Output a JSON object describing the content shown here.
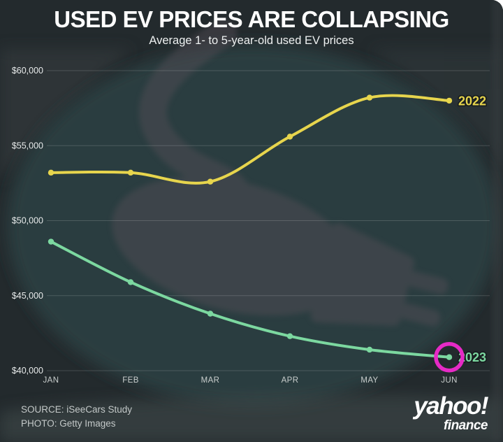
{
  "header": {
    "title": "USED EV PRICES ARE COLLAPSING",
    "subtitle": "Average 1- to 5-year-old used EV prices"
  },
  "chart_data": {
    "type": "line",
    "categories": [
      "JAN",
      "FEB",
      "MAR",
      "APR",
      "MAY",
      "JUN"
    ],
    "series": [
      {
        "name": "2022",
        "color": "#e7d54d",
        "values": [
          53200,
          53200,
          52600,
          55600,
          58200,
          58000
        ]
      },
      {
        "name": "2023",
        "color": "#7cd8a0",
        "values": [
          48600,
          45900,
          43800,
          42300,
          41400,
          40900
        ]
      }
    ],
    "title": "USED EV PRICES ARE COLLAPSING",
    "xlabel": "",
    "ylabel": "",
    "ylim": [
      40000,
      60000
    ],
    "yticks": [
      {
        "value": 60000,
        "label": "$60,000"
      },
      {
        "value": 55000,
        "label": "$55,000"
      },
      {
        "value": 50000,
        "label": "$50,000"
      },
      {
        "value": 45000,
        "label": "$45,000"
      },
      {
        "value": 40000,
        "label": "$40,000"
      }
    ],
    "grid": true,
    "legend_position": "line-end-labels",
    "annotation": {
      "type": "circle-highlight",
      "series": "2023",
      "category": "JUN",
      "color": "#e62ac6"
    }
  },
  "footer": {
    "source_line1": "SOURCE: iSeeCars Study",
    "source_line2": "PHOTO: Getty Images",
    "logo_main": "yahoo!",
    "logo_sub": "finance"
  },
  "colors": {
    "background": "#232a2d",
    "photo_teal_circle": "#2a3e40",
    "plug_silhouette": "#585059",
    "series_2022": "#e7d54d",
    "series_2023": "#7cd8a0",
    "highlight_circle": "#e62ac6",
    "gridline": "rgba(255,255,255,0.16)"
  }
}
